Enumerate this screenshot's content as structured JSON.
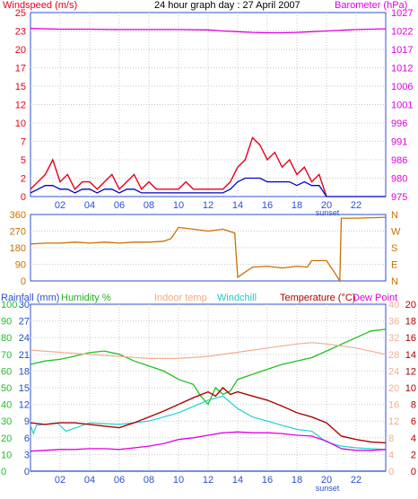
{
  "title": "24 hour graph day : 27 April 2007",
  "colors": {
    "windspeed": "#e8001c",
    "windavg": "#0000cc",
    "barometer": "#e000e0",
    "winddir": "#c87000",
    "rainfall": "#2050c0",
    "humidity": "#20c020",
    "indoor": "#f0b090",
    "windchill": "#20d0d0",
    "temperature": "#b00000",
    "dewpoint": "#e000e0",
    "grid": "#c8c8c8",
    "axis_blue": "#2c4fd0",
    "axis_right": "#e000e0",
    "axis_left": "#e8001c"
  },
  "chart_data": [
    {
      "type": "line",
      "panel": "wind",
      "left_label": "Windspeed (m/s)",
      "right_label": "Barometer (hPa)",
      "left_ticks": [
        "0",
        "2",
        "5",
        "7",
        "10",
        "12",
        "15",
        "17",
        "20",
        "23",
        "25"
      ],
      "left_tick_values": [
        0,
        2.5,
        5,
        7.5,
        10,
        12.5,
        15,
        17.5,
        20,
        22.5,
        25
      ],
      "right_ticks": [
        "975",
        "980",
        "986",
        "991",
        "996",
        "1001",
        "1006",
        "1012",
        "1017",
        "1022",
        "1027"
      ],
      "x_ticks": [
        "02",
        "04",
        "06",
        "08",
        "10",
        "12",
        "14",
        "16",
        "18",
        "20",
        "22"
      ],
      "x_note": "sunset",
      "ylim": [
        0,
        25
      ],
      "right_ylim": [
        975,
        1027
      ],
      "series": [
        {
          "key": "windspeed",
          "x": [
            0,
            0.5,
            1,
            1.5,
            2,
            2.5,
            3,
            3.5,
            4,
            4.5,
            5,
            5.5,
            6,
            6.5,
            7,
            7.5,
            8,
            8.5,
            9,
            9.5,
            10,
            10.5,
            11,
            11.5,
            12,
            12.5,
            13,
            13.5,
            14,
            14.5,
            15,
            15.5,
            16,
            16.5,
            17,
            17.5,
            18,
            18.5,
            19,
            19.5,
            20
          ],
          "values": [
            1,
            2,
            3,
            5,
            2,
            3,
            1,
            2,
            2,
            1,
            2,
            3,
            1,
            2,
            3,
            1,
            2,
            1,
            1,
            1,
            1,
            2,
            1,
            1,
            1,
            1,
            1,
            2,
            4,
            5,
            8,
            7,
            5,
            6,
            4,
            5,
            3,
            4,
            2,
            3,
            0
          ]
        },
        {
          "key": "windavg",
          "x": [
            0,
            0.5,
            1,
            1.5,
            2,
            2.5,
            3,
            3.5,
            4,
            4.5,
            5,
            5.5,
            6,
            6.5,
            7,
            7.5,
            8,
            8.5,
            9,
            9.5,
            10,
            10.5,
            11,
            11.5,
            12,
            12.5,
            13,
            13.5,
            14,
            14.5,
            15,
            15.5,
            16,
            16.5,
            17,
            17.5,
            18,
            18.5,
            19,
            19.5,
            20,
            24
          ],
          "values": [
            0.5,
            1,
            1.5,
            1.5,
            1,
            1,
            0.5,
            1,
            1,
            0.5,
            1,
            1,
            0.5,
            1,
            1,
            0.5,
            0.5,
            0.5,
            0.5,
            0.5,
            0.5,
            0.5,
            0.5,
            0.5,
            0.5,
            0.5,
            0.5,
            1,
            2,
            2.5,
            2.5,
            2.5,
            2,
            2,
            2,
            2,
            1.5,
            2,
            1.5,
            1.5,
            0,
            0
          ]
        },
        {
          "key": "barometer",
          "x": [
            0,
            2,
            4,
            6,
            8,
            10,
            12,
            13,
            14,
            15,
            16,
            17,
            18,
            19,
            20,
            22,
            24
          ],
          "values": [
            1022.5,
            1022.3,
            1022.3,
            1022.2,
            1022.2,
            1022.2,
            1022.1,
            1021.8,
            1021.6,
            1021.4,
            1021.3,
            1021.3,
            1021.4,
            1021.6,
            1021.8,
            1022.2,
            1022.4
          ]
        }
      ]
    },
    {
      "type": "line",
      "panel": "direction",
      "left_ticks": [
        "0",
        "90",
        "180",
        "270",
        "360"
      ],
      "left_tick_values": [
        0,
        90,
        180,
        270,
        360
      ],
      "right_ticks": [
        "N",
        "E",
        "S",
        "W",
        "N"
      ],
      "ylim": [
        0,
        360
      ],
      "series": [
        {
          "key": "winddir",
          "x": [
            0,
            1,
            2,
            3,
            4,
            5,
            6,
            7,
            8,
            9,
            9.5,
            10,
            11,
            12,
            13,
            13.8,
            14,
            15,
            16,
            17,
            18,
            18.7,
            19,
            20,
            20.5,
            20.9,
            21,
            22,
            24
          ],
          "values": [
            200,
            205,
            205,
            210,
            205,
            210,
            205,
            210,
            210,
            215,
            230,
            290,
            280,
            270,
            280,
            260,
            20,
            75,
            80,
            70,
            80,
            75,
            110,
            110,
            50,
            0,
            340,
            340,
            345
          ]
        }
      ]
    },
    {
      "type": "line",
      "panel": "temperature",
      "labels": [
        "Rainfall (mm)",
        "Humidity %",
        "Indoor temp",
        "Windchill",
        "Temperature (°C)",
        "Dew Point"
      ],
      "ticks_humidity": [
        "0",
        "10",
        "20",
        "30",
        "40",
        "50",
        "60",
        "70",
        "80",
        "90",
        "100"
      ],
      "ticks_rain": [
        "0",
        "3",
        "6",
        "9",
        "12",
        "15",
        "18",
        "21",
        "24",
        "27",
        "30"
      ],
      "ticks_indoor": [
        "0",
        "4",
        "8",
        "12",
        "16",
        "20",
        "24",
        "28",
        "32",
        "36",
        "40"
      ],
      "ticks_temp": [
        "0",
        "2",
        "4",
        "6",
        "8",
        "10",
        "12",
        "14",
        "16",
        "18",
        "20"
      ],
      "x_ticks": [
        "02",
        "04",
        "06",
        "08",
        "10",
        "12",
        "14",
        "16",
        "18",
        "20",
        "22"
      ],
      "x_note": "sunset",
      "ylim": [
        0,
        100
      ],
      "series": [
        {
          "key": "humidity",
          "x": [
            0,
            1,
            2,
            3,
            4,
            5,
            6,
            7,
            8,
            9,
            10,
            11,
            11.5,
            12,
            12.5,
            13,
            13.5,
            14,
            15,
            16,
            17,
            18,
            19,
            20,
            21,
            22,
            23,
            24
          ],
          "values": [
            64,
            66,
            67,
            69,
            71,
            72,
            70,
            66,
            63,
            60,
            55,
            52,
            45,
            40,
            50,
            46,
            48,
            55,
            58,
            61,
            64,
            66,
            68,
            72,
            76,
            80,
            84,
            85
          ]
        },
        {
          "key": "indoor",
          "x": [
            0,
            2,
            4,
            6,
            8,
            10,
            12,
            14,
            16,
            18,
            19,
            20,
            22,
            24
          ],
          "values": [
            29,
            28.5,
            28,
            27.5,
            27,
            27,
            27.5,
            28.5,
            29.5,
            30.5,
            30.8,
            30.5,
            29.5,
            28
          ]
        },
        {
          "key": "windchill",
          "x": [
            0,
            0.2,
            0.4,
            1.8,
            2.4,
            4,
            6,
            8,
            10,
            12,
            13,
            14,
            15,
            16,
            17,
            18,
            19,
            20,
            21,
            22,
            24
          ],
          "values": [
            5.5,
            4.5,
            5.5,
            5.8,
            4.8,
            5.8,
            5.6,
            6.0,
            7.0,
            8.5,
            9.0,
            7.5,
            6.5,
            6.0,
            5.5,
            5.0,
            4.8,
            3.5,
            3.0,
            2.8,
            2.6
          ]
        },
        {
          "key": "temperature",
          "x": [
            0,
            1,
            2,
            3,
            4,
            5,
            6,
            7,
            8,
            9,
            10,
            11,
            12,
            12.5,
            13,
            13.5,
            14,
            15,
            16,
            17,
            18,
            19,
            20,
            21,
            22,
            23,
            24
          ],
          "values": [
            5.8,
            5.6,
            5.8,
            5.8,
            5.6,
            5.4,
            5.2,
            5.8,
            6.5,
            7.2,
            8.0,
            8.8,
            9.5,
            9.0,
            10.0,
            9.2,
            9.5,
            9.0,
            8.5,
            7.8,
            7.0,
            6.5,
            5.8,
            4.2,
            3.8,
            3.5,
            3.4
          ]
        },
        {
          "key": "dewpoint",
          "x": [
            0,
            1,
            2,
            3,
            4,
            5,
            6,
            7,
            8,
            9,
            10,
            11,
            12,
            13,
            14,
            15,
            16,
            17,
            18,
            19,
            20,
            21,
            22,
            23,
            24
          ],
          "values": [
            2.4,
            2.5,
            2.6,
            2.6,
            2.7,
            2.7,
            2.6,
            2.8,
            3.0,
            3.3,
            3.8,
            4.0,
            4.3,
            4.6,
            4.7,
            4.6,
            4.6,
            4.5,
            4.3,
            4.2,
            3.6,
            2.7,
            2.5,
            2.5,
            2.6
          ]
        },
        {
          "key": "rainfall",
          "x": [
            0,
            24
          ],
          "values": [
            0,
            0
          ]
        }
      ]
    }
  ]
}
